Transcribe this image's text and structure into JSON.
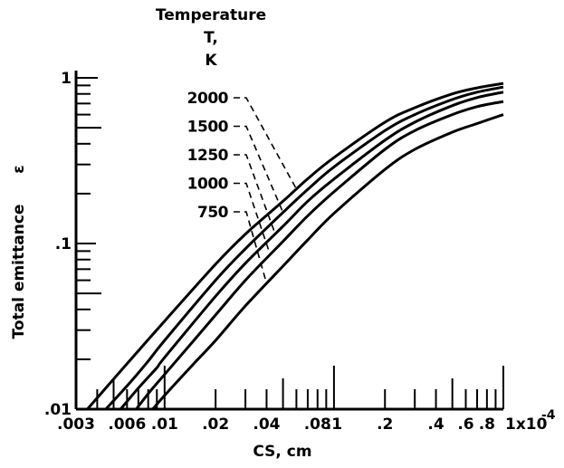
{
  "chart_data": {
    "type": "line",
    "title": "",
    "xlabel": "CS, cm",
    "ylabel": "Total emittance",
    "ylabel_symbol": "ε",
    "x_scale": "log",
    "y_scale": "log",
    "xlim": [
      0.003,
      1.0
    ],
    "ylim": [
      0.01,
      1.0
    ],
    "x_multiplier": "1x10",
    "x_multiplier_exponent": "-4",
    "x_ticks": [
      {
        "value": 0.003,
        "label": ".003"
      },
      {
        "value": 0.006,
        "label": ".006"
      },
      {
        "value": 0.01,
        "label": ".01"
      },
      {
        "value": 0.02,
        "label": ".02"
      },
      {
        "value": 0.04,
        "label": ".04"
      },
      {
        "value": 0.08,
        "label": ".08"
      },
      {
        "value": 0.1,
        "label": ".1"
      },
      {
        "value": 0.2,
        "label": ".2"
      },
      {
        "value": 0.4,
        "label": ".4"
      },
      {
        "value": 0.6,
        "label": ".6"
      },
      {
        "value": 0.8,
        "label": ".8"
      },
      {
        "value": 1.0,
        "label": "1"
      }
    ],
    "y_ticks": [
      {
        "value": 0.01,
        "label": ".01"
      },
      {
        "value": 0.1,
        "label": ".1"
      },
      {
        "value": 1.0,
        "label": "1"
      }
    ],
    "legend": {
      "title_lines": [
        "Temperature",
        "T,",
        "K"
      ],
      "placement": "top-center"
    },
    "grid": false,
    "series": [
      {
        "name": "2000",
        "x": [
          0.0035,
          0.005,
          0.007,
          0.01,
          0.02,
          0.03,
          0.05,
          0.07,
          0.1,
          0.2,
          0.3,
          0.5,
          0.7,
          1.0
        ],
        "y": [
          0.01,
          0.0152,
          0.0225,
          0.034,
          0.075,
          0.114,
          0.18,
          0.246,
          0.33,
          0.54,
          0.66,
          0.8,
          0.87,
          0.925
        ]
      },
      {
        "name": "1500",
        "x": [
          0.0045,
          0.006,
          0.008,
          0.01,
          0.02,
          0.03,
          0.05,
          0.07,
          0.1,
          0.2,
          0.3,
          0.5,
          0.7,
          1.0
        ],
        "y": [
          0.01,
          0.0138,
          0.0195,
          0.026,
          0.06,
          0.093,
          0.154,
          0.212,
          0.29,
          0.48,
          0.6,
          0.74,
          0.82,
          0.88
        ]
      },
      {
        "name": "1250",
        "x": [
          0.0055,
          0.007,
          0.009,
          0.01,
          0.02,
          0.03,
          0.05,
          0.07,
          0.1,
          0.2,
          0.3,
          0.5,
          0.7,
          1.0
        ],
        "y": [
          0.01,
          0.0134,
          0.0178,
          0.0205,
          0.048,
          0.076,
          0.127,
          0.18,
          0.245,
          0.42,
          0.54,
          0.68,
          0.76,
          0.82
        ]
      },
      {
        "name": "1000",
        "x": [
          0.0068,
          0.008,
          0.01,
          0.02,
          0.03,
          0.05,
          0.07,
          0.1,
          0.2,
          0.3,
          0.5,
          0.7,
          1.0
        ],
        "y": [
          0.01,
          0.0124,
          0.0162,
          0.037,
          0.06,
          0.103,
          0.147,
          0.205,
          0.37,
          0.48,
          0.6,
          0.67,
          0.72
        ]
      },
      {
        "name": "750",
        "x": [
          0.0085,
          0.01,
          0.015,
          0.02,
          0.03,
          0.05,
          0.07,
          0.1,
          0.2,
          0.3,
          0.5,
          0.7,
          1.0
        ],
        "y": [
          0.01,
          0.0121,
          0.019,
          0.026,
          0.042,
          0.073,
          0.105,
          0.152,
          0.28,
          0.37,
          0.47,
          0.53,
          0.6
        ]
      }
    ]
  }
}
